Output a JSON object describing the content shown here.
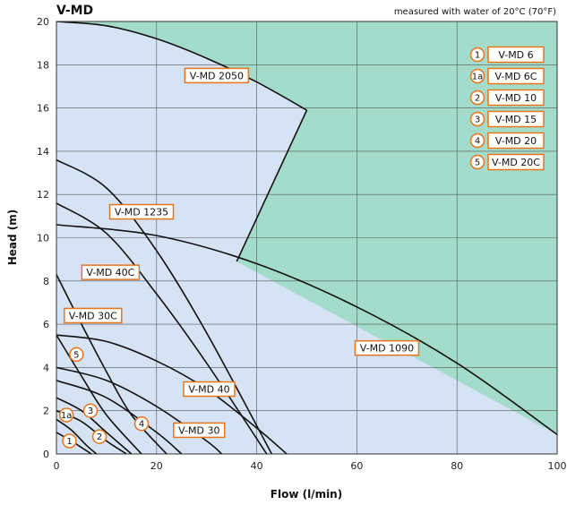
{
  "chart_data": {
    "type": "line",
    "title": "V-MD",
    "subtitle": "measured with water of 20°C (70°F)",
    "xlabel": "Flow (l/min)",
    "ylabel": "Head (m)",
    "xlim": [
      0,
      100
    ],
    "ylim": [
      0,
      20
    ],
    "x_ticks": [
      "0",
      "20",
      "40",
      "60",
      "80",
      "100"
    ],
    "y_ticks": [
      "0",
      "2",
      "4",
      "6",
      "8",
      "10",
      "12",
      "14",
      "16",
      "18",
      "20"
    ],
    "grid": true,
    "colors": {
      "operating_area": "#d6e3f5",
      "outside_area": "#a3dccb",
      "curve": "#111111",
      "label_border": "#e8741c",
      "grid": "#555555"
    },
    "series": [
      {
        "name": "V-MD 2050",
        "x": [
          0,
          10,
          20,
          30,
          40,
          50
        ],
        "y": [
          20,
          19.8,
          19.2,
          18.3,
          17.2,
          15.9
        ]
      },
      {
        "name": "V-MD 1090",
        "x": [
          0,
          20,
          40,
          60,
          80,
          100
        ],
        "y": [
          10.6,
          10.1,
          8.8,
          6.8,
          4.2,
          0.9
        ]
      },
      {
        "name": "V-MD 1235",
        "x": [
          0,
          10,
          20,
          30,
          43
        ],
        "y": [
          13.6,
          12.3,
          9.4,
          5.6,
          0
        ]
      },
      {
        "name": "V-MD 40C",
        "x": [
          0,
          10,
          20,
          30,
          42
        ],
        "y": [
          11.6,
          10.2,
          7.4,
          4.2,
          0
        ]
      },
      {
        "name": "V-MD 40",
        "x": [
          0,
          10,
          20,
          30,
          40,
          46
        ],
        "y": [
          5.5,
          5.2,
          4.3,
          3.0,
          1.2,
          0
        ]
      },
      {
        "name": "V-MD 30",
        "x": [
          0,
          10,
          20,
          30,
          33
        ],
        "y": [
          4.0,
          3.4,
          2.2,
          0.6,
          0
        ]
      },
      {
        "name": "V-MD 30C",
        "x": [
          0,
          5,
          10,
          15,
          22
        ],
        "y": [
          8.3,
          6.0,
          3.8,
          1.8,
          0
        ]
      },
      {
        "name": "V-MD 20C",
        "x": [
          0,
          5,
          10,
          17
        ],
        "y": [
          5.5,
          3.6,
          1.8,
          0
        ]
      },
      {
        "name": "V-MD 20",
        "x": [
          0,
          10,
          20,
          25
        ],
        "y": [
          3.4,
          2.6,
          1.0,
          0
        ]
      },
      {
        "name": "V-MD 15",
        "x": [
          0,
          5,
          10,
          15
        ],
        "y": [
          2.6,
          2.0,
          1.0,
          0
        ]
      },
      {
        "name": "V-MD 10",
        "x": [
          0,
          5,
          10,
          14
        ],
        "y": [
          2.0,
          1.5,
          0.6,
          0
        ]
      },
      {
        "name": "V-MD 6C",
        "x": [
          0,
          3,
          6,
          8
        ],
        "y": [
          1.6,
          1.1,
          0.4,
          0
        ]
      },
      {
        "name": "V-MD 6",
        "x": [
          0,
          3,
          5,
          7
        ],
        "y": [
          1.0,
          0.6,
          0.3,
          0
        ]
      }
    ],
    "boundary": {
      "x": [
        0,
        10,
        20,
        30,
        40,
        50,
        36,
        100
      ],
      "y": [
        20,
        19.8,
        19.2,
        18.3,
        17.2,
        15.9,
        8.9,
        0.9
      ]
    },
    "curve_labels": [
      {
        "text": "V-MD 2050",
        "x": 32,
        "y": 17.5
      },
      {
        "text": "V-MD 1235",
        "x": 17,
        "y": 11.2
      },
      {
        "text": "V-MD 40C",
        "x": 10.8,
        "y": 8.4
      },
      {
        "text": "V-MD 30C",
        "x": 7.3,
        "y": 6.4
      },
      {
        "text": "V-MD 1090",
        "x": 66,
        "y": 4.9
      },
      {
        "text": "V-MD 40",
        "x": 30.5,
        "y": 3.0
      },
      {
        "text": "V-MD 30",
        "x": 28.5,
        "y": 1.1
      }
    ],
    "curve_markers": [
      {
        "num": "1",
        "x": 2.6,
        "y": 0.6
      },
      {
        "num": "1a",
        "x": 2.0,
        "y": 1.8
      },
      {
        "num": "2",
        "x": 8.6,
        "y": 0.8
      },
      {
        "num": "3",
        "x": 6.8,
        "y": 2.0
      },
      {
        "num": "4",
        "x": 17.0,
        "y": 1.4
      },
      {
        "num": "5",
        "x": 4.0,
        "y": 4.6
      }
    ],
    "legend_position": "top-right",
    "legend": [
      {
        "num": "1",
        "name": "V-MD 6"
      },
      {
        "num": "1a",
        "name": "V-MD 6C"
      },
      {
        "num": "2",
        "name": "V-MD 10"
      },
      {
        "num": "3",
        "name": "V-MD 15"
      },
      {
        "num": "4",
        "name": "V-MD 20"
      },
      {
        "num": "5",
        "name": "V-MD 20C"
      }
    ]
  }
}
